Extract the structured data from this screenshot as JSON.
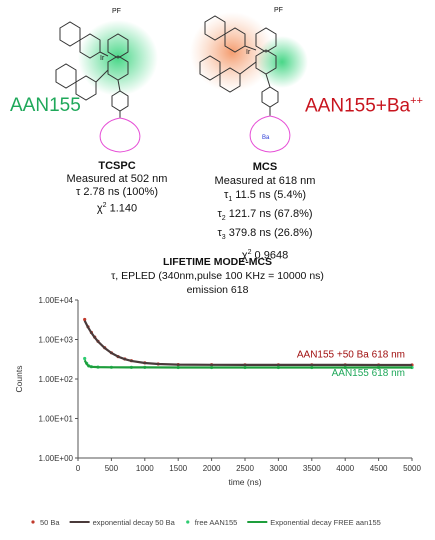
{
  "structures": {
    "left_label": "AAN155",
    "right_label": "AAN155+Ba",
    "right_label_sup": "++",
    "counter_ion": "PF",
    "counter_ion_sub": "6",
    "atom_n": "N",
    "atom_o": "O",
    "atom_ir": "Ir",
    "ba_ion": "Ba",
    "ba_ion_sup": "++"
  },
  "tcspc": {
    "title": "TCSPC",
    "measured": "Measured at 502 nm",
    "tau": "τ 2.78 ns (100%)",
    "chi": "χ",
    "chi_sup": "2",
    "chi_val": "1.140"
  },
  "mcs": {
    "title": "MCS",
    "measured": "Measured at 618 nm",
    "taus": [
      {
        "sym": "τ",
        "sub": "1",
        "val": "11.5 ns (5.4%)"
      },
      {
        "sym": "τ",
        "sub": "2",
        "val": "121.7 ns (67.8%)"
      },
      {
        "sym": "τ",
        "sub": "3",
        "val": "379.8 ns (26.8%)"
      }
    ],
    "chi": "χ",
    "chi_sup": "2",
    "chi_val": "0.9648"
  },
  "mode": {
    "title": "LIFETIME MODE-MCS",
    "line1": "τ, EPLED (340nm,pulse 100 KHz = 10000 ns)",
    "line2": "emission 618"
  },
  "chart_data": {
    "type": "scatter",
    "xlabel": "time (ns)",
    "ylabel": "Counts",
    "xlim": [
      0,
      5000
    ],
    "ylim": [
      1,
      10000
    ],
    "log_y": true,
    "x_ticks": [
      0,
      500,
      1000,
      1500,
      2000,
      2500,
      3000,
      3500,
      4000,
      4500,
      5000
    ],
    "y_ticks": [
      {
        "value": 1,
        "label": "1.00E+00"
      },
      {
        "value": 10,
        "label": "1.00E+01"
      },
      {
        "value": 100,
        "label": "1.00E+02"
      },
      {
        "value": 1000,
        "label": "1.00E+03"
      },
      {
        "value": 10000,
        "label": "1.00E+04"
      }
    ],
    "series": [
      {
        "name": "50 Ba",
        "kind": "points",
        "color": "#c0392b",
        "x": [
          100,
          150,
          200,
          250,
          300,
          400,
          500,
          600,
          700,
          800,
          1000,
          1200,
          1500,
          2000,
          2500,
          3000,
          3500,
          4000,
          4500,
          5000
        ],
        "y": [
          3200,
          2100,
          1500,
          1150,
          900,
          620,
          460,
          370,
          320,
          290,
          255,
          240,
          232,
          230,
          228,
          228,
          227,
          227,
          226,
          226
        ]
      },
      {
        "name": "exponential decay 50 Ba",
        "kind": "line",
        "color": "#4a3a3a",
        "x": [
          100,
          150,
          200,
          250,
          300,
          400,
          500,
          600,
          700,
          800,
          1000,
          1200,
          1500,
          2000,
          2500,
          3000,
          3500,
          4000,
          4500,
          5000
        ],
        "y": [
          3000,
          2050,
          1480,
          1130,
          890,
          610,
          455,
          368,
          318,
          288,
          254,
          240,
          232,
          229,
          228,
          228,
          227,
          227,
          226,
          226
        ]
      },
      {
        "name": "free AAN155",
        "kind": "points",
        "color": "#2ecc71",
        "x": [
          100,
          130,
          160,
          200,
          300,
          500,
          800,
          1000,
          1500,
          2000,
          2500,
          3000,
          3500,
          4000,
          4500,
          5000
        ],
        "y": [
          330,
          250,
          215,
          205,
          200,
          198,
          197,
          197,
          196,
          196,
          196,
          195,
          195,
          195,
          195,
          195
        ]
      },
      {
        "name": "Exponential decay FREE aan155",
        "kind": "line",
        "color": "#1e9e3c",
        "x": [
          100,
          130,
          160,
          200,
          300,
          500,
          800,
          1000,
          1500,
          2000,
          2500,
          3000,
          3500,
          4000,
          4500,
          5000
        ],
        "y": [
          300,
          240,
          212,
          204,
          200,
          198,
          197,
          197,
          196,
          196,
          196,
          195,
          195,
          195,
          195,
          195
        ]
      }
    ],
    "annotations": [
      {
        "text": "AAN155 +50 Ba 618 nm",
        "color": "#a01010"
      },
      {
        "text": "AAN155 618 nm",
        "color": "#1fa85a"
      }
    ],
    "legend_position": "bottom"
  }
}
